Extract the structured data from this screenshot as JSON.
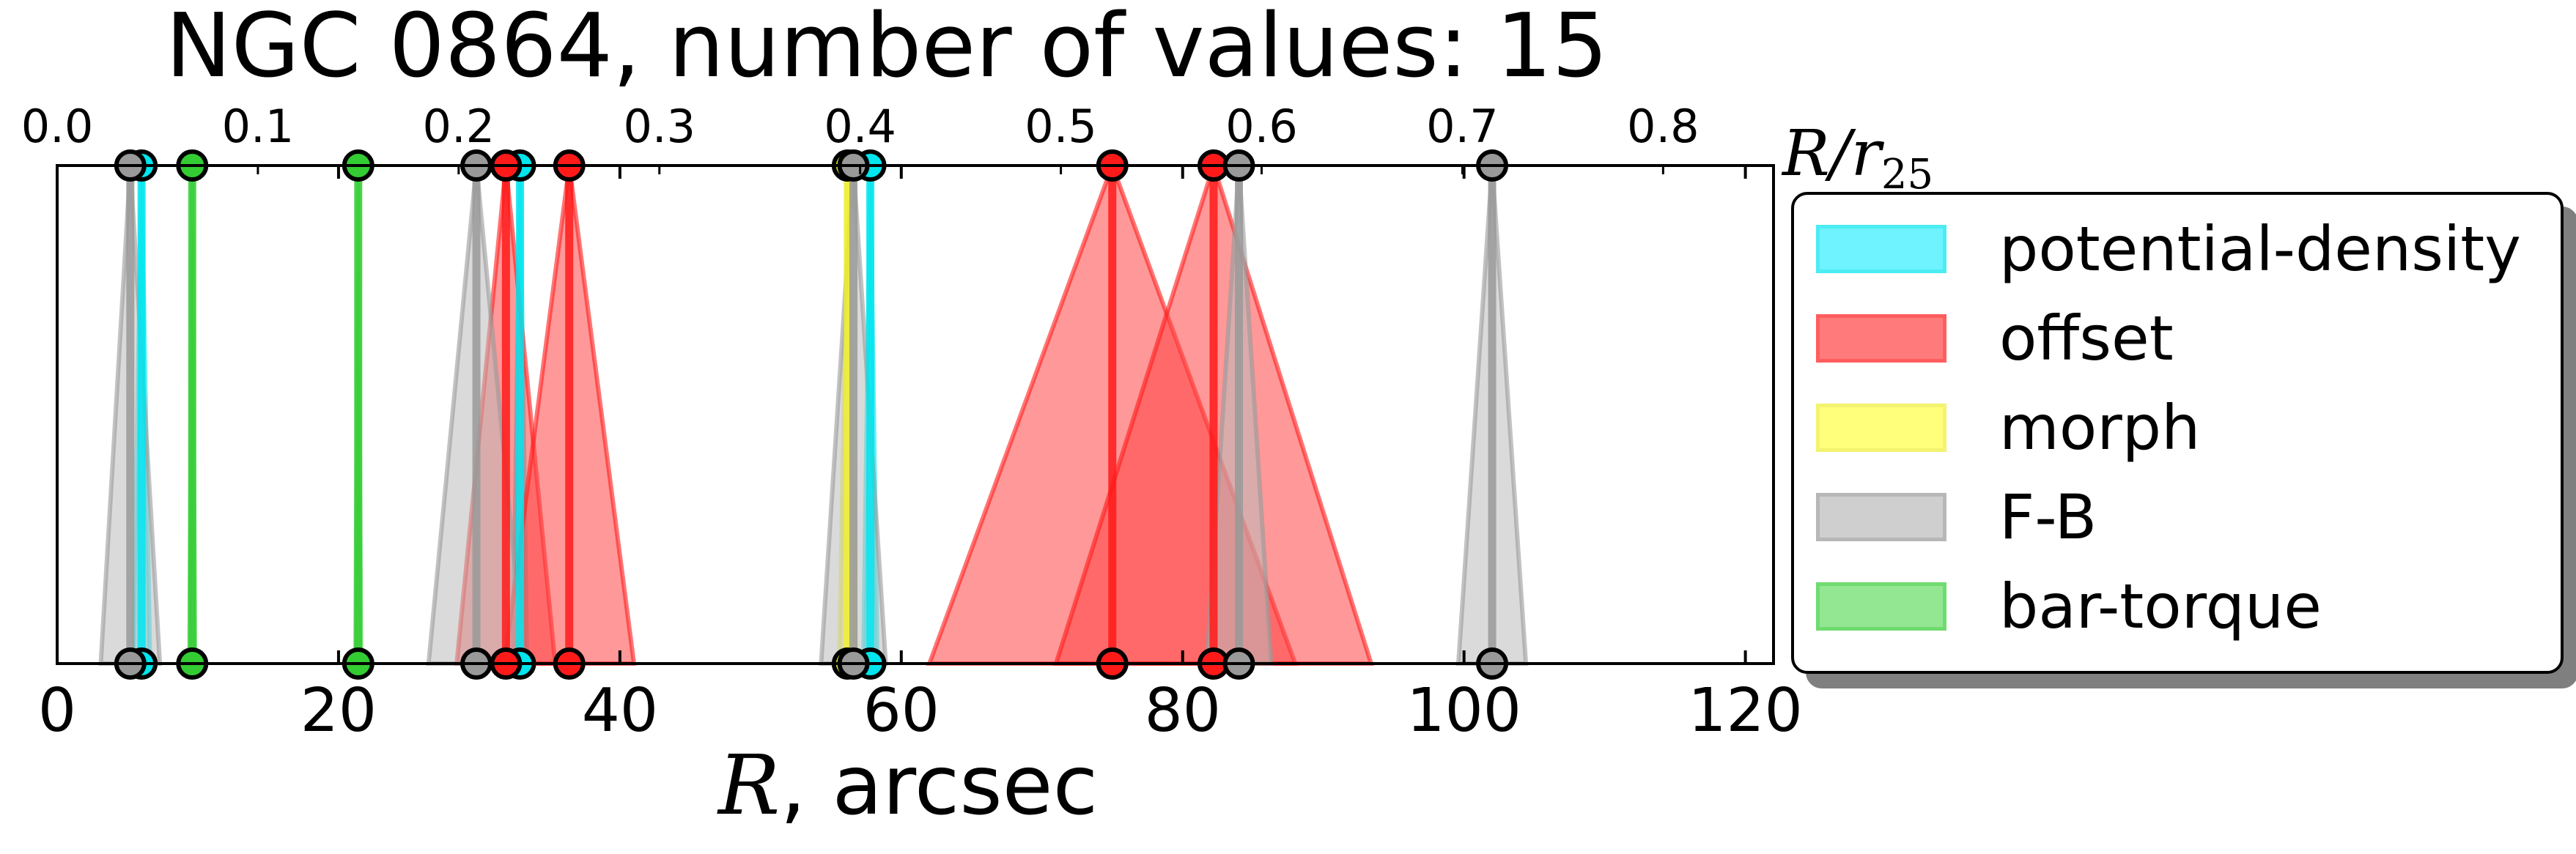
{
  "chart_data": {
    "type": "scatter",
    "title": "NGC 0864, number of values: 15",
    "xlabel_math": "R",
    "xlabel_text": ", arcsec",
    "top_axis_label": "R/r",
    "top_axis_label_sub": "25",
    "xlim": [
      0,
      122
    ],
    "xticks": [
      0,
      20,
      40,
      60,
      80,
      100,
      120
    ],
    "top_xlim": [
      0,
      0.855
    ],
    "top_xticks": [
      "0.0",
      "0.1",
      "0.2",
      "0.3",
      "0.4",
      "0.5",
      "0.6",
      "0.7",
      "0.8"
    ],
    "series": [
      {
        "name": "potential-density",
        "color": "#00e5ee",
        "fill": "#33eeff",
        "points": [
          {
            "r": 6.0,
            "err": 0.6
          },
          {
            "r": 32.9,
            "err": 0.5
          },
          {
            "r": 57.8,
            "err": 0.5
          }
        ]
      },
      {
        "name": "offset",
        "color": "#ff1a1a",
        "fill": "#ff4444",
        "points": [
          {
            "r": 31.9,
            "err": 3.5
          },
          {
            "r": 36.4,
            "err": 4.6
          },
          {
            "r": 75.0,
            "err": 13.0
          },
          {
            "r": 82.2,
            "err": 11.2
          }
        ]
      },
      {
        "name": "morph",
        "color": "#eeee33",
        "fill": "#ffff44",
        "points": [
          {
            "r": 56.2,
            "err": 0.6
          }
        ]
      },
      {
        "name": "F-B",
        "color": "#999999",
        "fill": "#bbbbbb",
        "points": [
          {
            "r": 5.2,
            "err": 2.1
          },
          {
            "r": 29.8,
            "err": 3.4
          },
          {
            "r": 56.6,
            "err": 2.3
          },
          {
            "r": 84.0,
            "err": 2.3
          },
          {
            "r": 102.0,
            "err": 2.4
          }
        ]
      },
      {
        "name": "bar-torque",
        "color": "#33cc33",
        "fill": "#66dd66",
        "points": [
          {
            "r": 9.6,
            "err": 0.2
          },
          {
            "r": 21.4,
            "err": 0.2
          }
        ]
      }
    ],
    "grid": false,
    "legend_position": "right"
  }
}
